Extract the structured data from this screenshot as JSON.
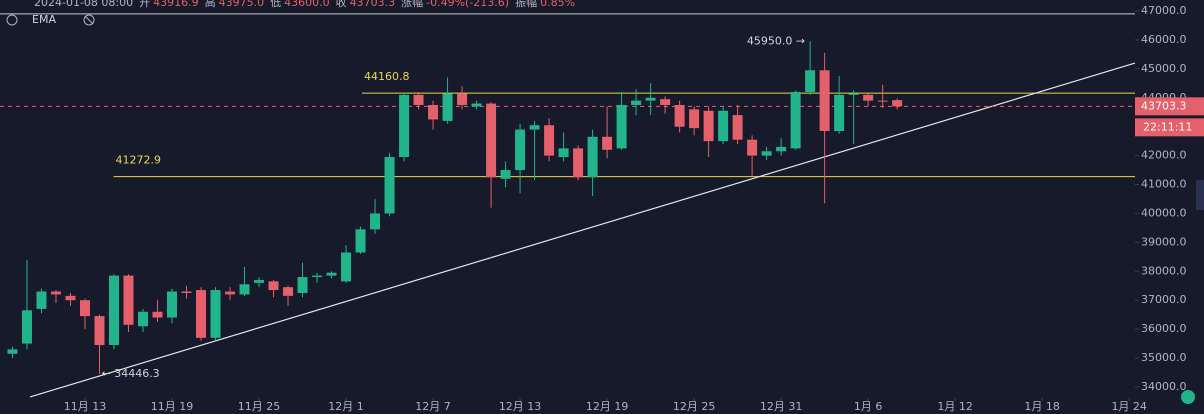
{
  "chart_data": {
    "type": "candlestick",
    "header": {
      "time": "2024-01-08 08:00",
      "fields": [
        {
          "label": "开",
          "text": "43916.9"
        },
        {
          "label": "高",
          "text": "43975.0"
        },
        {
          "label": "低",
          "text": "43600.0"
        },
        {
          "label": "收",
          "text": "43703.3"
        },
        {
          "label": "涨幅",
          "text": "-0.49%(-213.6)"
        },
        {
          "label": "振幅",
          "text": "0.85%"
        }
      ]
    },
    "indicator": "EMA",
    "up_color": "#22b58c",
    "down_color": "#e4606a",
    "open": [
      35150,
      35500,
      36700,
      37300,
      37150,
      37000,
      36450,
      35450,
      37850,
      36100,
      36600,
      36400,
      37300,
      37350,
      35700,
      37300,
      37200,
      37600,
      37650,
      37450,
      37250,
      37800,
      37850,
      37650,
      38650,
      39450,
      40000,
      41950,
      44100,
      43750,
      43200,
      44150,
      43700,
      43800,
      41200,
      41500,
      42900,
      43050,
      41950,
      42250,
      41250,
      42650,
      42250,
      43750,
      43900,
      43950,
      43750,
      43600,
      43550,
      42500,
      43400,
      42550,
      42000,
      42150,
      42250,
      44200,
      44950,
      42850,
      44100,
      44100,
      43900,
      43916.9
    ],
    "high": [
      35400,
      38400,
      37400,
      37350,
      37250,
      37050,
      36500,
      37900,
      37900,
      36700,
      37000,
      37400,
      37500,
      37450,
      37450,
      37450,
      38150,
      37800,
      37700,
      37500,
      38300,
      37950,
      38000,
      38900,
      39550,
      40500,
      42100,
      44160.8,
      44200,
      43900,
      44700,
      44400,
      43900,
      43850,
      41800,
      43100,
      43200,
      43300,
      42800,
      42350,
      42900,
      43700,
      44200,
      44300,
      44500,
      44050,
      43900,
      43700,
      43700,
      43700,
      43750,
      42700,
      42300,
      42600,
      44250,
      45950,
      45550,
      44750,
      44250,
      44150,
      44450,
      43975
    ],
    "low": [
      35000,
      35300,
      36550,
      36900,
      36800,
      36000,
      34446.3,
      35300,
      35900,
      35900,
      36250,
      36200,
      37050,
      35600,
      35600,
      37000,
      37150,
      37450,
      37100,
      36800,
      37100,
      37600,
      37750,
      37600,
      38600,
      39300,
      39900,
      41800,
      43600,
      42900,
      43100,
      43600,
      43600,
      40200,
      40900,
      40700,
      41150,
      41800,
      41800,
      41150,
      40600,
      41900,
      42200,
      43400,
      43400,
      43450,
      42800,
      42700,
      41950,
      42400,
      42400,
      41300,
      41850,
      42000,
      42200,
      44100,
      40350,
      42750,
      42400,
      43700,
      43650,
      43600
    ],
    "close": [
      35300,
      36650,
      37300,
      37200,
      37000,
      36450,
      35450,
      37850,
      36150,
      36600,
      36400,
      37300,
      37250,
      35700,
      37350,
      37200,
      37550,
      37700,
      37350,
      37150,
      37800,
      37850,
      37950,
      38650,
      39450,
      40000,
      41950,
      44100,
      43750,
      43250,
      44150,
      43750,
      43800,
      41250,
      41500,
      42900,
      43050,
      42000,
      42250,
      41250,
      42650,
      42200,
      43750,
      43900,
      44000,
      43750,
      43000,
      42950,
      42500,
      43550,
      42550,
      42000,
      42150,
      42300,
      44200,
      44950,
      42850,
      44100,
      44150,
      43900,
      43870,
      43703.3
    ],
    "xlim": [
      -0.86,
      77.4
    ],
    "xticks": [
      {
        "value": 5,
        "label": "11月 13"
      },
      {
        "value": 11,
        "label": "11月 19"
      },
      {
        "value": 17,
        "label": "11月 25"
      },
      {
        "value": 23,
        "label": "12月 1"
      },
      {
        "value": 29,
        "label": "12月 7"
      },
      {
        "value": 35,
        "label": "12月 13"
      },
      {
        "value": 41,
        "label": "12月 19"
      },
      {
        "value": 47,
        "label": "12月 25"
      },
      {
        "value": 53,
        "label": "12月 31"
      },
      {
        "value": 59,
        "label": "1月 6"
      },
      {
        "value": 65,
        "label": "1月 12"
      },
      {
        "value": 71,
        "label": "1月 18"
      },
      {
        "value": 77,
        "label": "1月 24"
      }
    ],
    "ylim": [
      33065,
      47380
    ],
    "yticks": [
      {
        "value": 34000,
        "label": "34000.0"
      },
      {
        "value": 35000,
        "label": "35000.0"
      },
      {
        "value": 36000,
        "label": "36000.0"
      },
      {
        "value": 37000,
        "label": "37000.0"
      },
      {
        "value": 38000,
        "label": "38000.0"
      },
      {
        "value": 39000,
        "label": "39000.0"
      },
      {
        "value": 40000,
        "label": "40000.0"
      },
      {
        "value": 41000,
        "label": "41000.0"
      },
      {
        "value": 42000,
        "label": "42000.0"
      },
      {
        "value": 43000,
        "label": "43000.0"
      },
      {
        "value": 44000,
        "label": "44000.0"
      },
      {
        "value": 45000,
        "label": "45000.0"
      },
      {
        "value": 46000,
        "label": "46000.0"
      },
      {
        "value": 47000,
        "label": "47000.0"
      }
    ],
    "levels": [
      44160.8,
      41272.9
    ],
    "level_color": "#e8d84a",
    "top_line": 46900,
    "trendline": {
      "x": [
        1.21,
        77.4
      ],
      "y": [
        33654,
        45200
      ]
    },
    "max_marker": {
      "x": 55,
      "value": 45950,
      "label": "45950.0 →"
    },
    "min_marker": {
      "x": 6,
      "value": 34446.3,
      "label": "← 34446.3"
    },
    "last_price": 43703.3,
    "countdown": "22:11:11"
  }
}
